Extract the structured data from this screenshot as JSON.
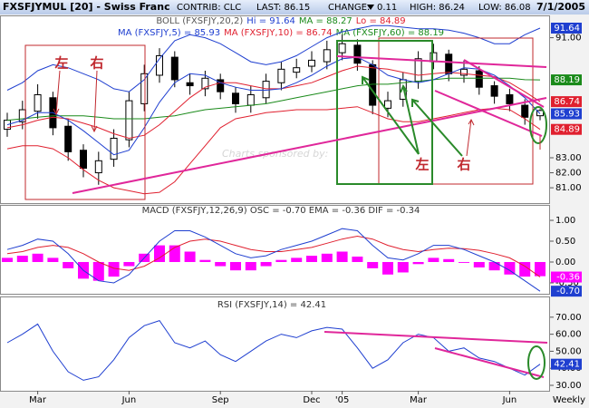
{
  "header": {
    "title": "FXSFJYMUL [20] - Swiss Franc",
    "contrib": "CONTRIB: CLC",
    "last": "LAST: 86.15",
    "change": "CHANGE:",
    "change_value": "0.11",
    "high": "HIGH: 86.24",
    "low": "LOW: 86.08",
    "date": "7/1/2005"
  },
  "chart_data": [
    {
      "type": "candlestick",
      "legend": [
        [
          {
            "text": "BOLL (FXSFJY,20,2)",
            "color": "#555555"
          },
          {
            "text": "Hi = 91.64",
            "color": "#1f3fd0"
          },
          {
            "text": "MA = 88.27",
            "color": "#1a8a1a"
          },
          {
            "text": "Lo = 84.89",
            "color": "#e0202f"
          }
        ],
        [
          {
            "text": "MA (FXSFJY,5) = 85.93",
            "color": "#1f3fd0"
          },
          {
            "text": "MA (FXSFJY,10) = 86.74",
            "color": "#e0202f"
          },
          {
            "text": "MA (FXSFJY,60) = 88.19",
            "color": "#1a8a1a"
          }
        ]
      ],
      "open": [
        84.9,
        85.4,
        86.1,
        87.0,
        85.1,
        83.5,
        82.0,
        82.9,
        84.2,
        86.6,
        88.5,
        89.7,
        88.0,
        87.6,
        88.2,
        87.3,
        86.5,
        87.0,
        88.0,
        88.7,
        89.1,
        89.4,
        90.0,
        90.5,
        89.2,
        86.3,
        86.9,
        88.1,
        89.4,
        89.9,
        88.5,
        88.8,
        87.8,
        87.2,
        86.5,
        85.8
      ],
      "high": [
        86.0,
        86.8,
        87.9,
        87.4,
        85.6,
        83.9,
        83.4,
        84.9,
        87.4,
        89.2,
        90.3,
        90.1,
        88.6,
        88.8,
        88.6,
        87.7,
        87.8,
        88.6,
        89.4,
        89.6,
        90.1,
        90.8,
        91.2,
        90.9,
        89.5,
        87.4,
        88.7,
        90.1,
        90.6,
        90.2,
        89.5,
        89.1,
        88.1,
        87.6,
        86.9,
        86.24
      ],
      "low": [
        84.4,
        84.9,
        85.6,
        84.5,
        82.8,
        81.7,
        81.2,
        82.4,
        83.7,
        86.1,
        88.0,
        87.7,
        87.2,
        87.1,
        86.9,
        86.0,
        86.0,
        86.6,
        87.5,
        88.3,
        88.7,
        88.9,
        89.5,
        88.8,
        85.9,
        85.7,
        86.4,
        87.6,
        88.9,
        88.1,
        88.0,
        87.2,
        86.6,
        86.1,
        85.2,
        85.5
      ],
      "close": [
        85.5,
        86.2,
        87.2,
        85.0,
        83.4,
        82.3,
        82.8,
        84.3,
        86.8,
        88.6,
        89.8,
        88.2,
        87.8,
        88.3,
        87.4,
        86.6,
        87.2,
        88.1,
        88.9,
        89.0,
        89.5,
        90.2,
        90.6,
        89.3,
        86.5,
        86.8,
        88.2,
        89.6,
        90.0,
        88.6,
        88.9,
        87.7,
        87.1,
        86.6,
        85.7,
        86.15
      ],
      "lines": [
        {
          "color": "#1f3fd0",
          "values": [
            87.5,
            88.0,
            88.8,
            89.2,
            89.0,
            88.6,
            88.2,
            87.6,
            87.4,
            88.2,
            89.6,
            90.8,
            91.2,
            91.0,
            90.6,
            90.0,
            89.4,
            89.2,
            89.4,
            89.8,
            90.4,
            91.0,
            91.4,
            91.6,
            91.8,
            91.8,
            91.7,
            91.6,
            91.6,
            91.5,
            91.3,
            91.0,
            90.6,
            90.6,
            91.2,
            91.64
          ]
        },
        {
          "color": "#1a8a1a",
          "values": [
            85.5,
            85.6,
            85.7,
            85.8,
            85.8,
            85.8,
            85.7,
            85.6,
            85.6,
            85.6,
            85.7,
            85.8,
            86.0,
            86.2,
            86.3,
            86.4,
            86.5,
            86.6,
            86.8,
            87.0,
            87.2,
            87.4,
            87.6,
            87.8,
            87.9,
            87.9,
            88.0,
            88.1,
            88.2,
            88.3,
            88.3,
            88.3,
            88.3,
            88.3,
            88.2,
            88.19
          ]
        },
        {
          "color": "#e0202f",
          "values": [
            85.0,
            85.2,
            85.5,
            85.7,
            85.6,
            85.3,
            85.0,
            84.6,
            84.3,
            84.5,
            85.2,
            86.1,
            87.0,
            87.7,
            88.0,
            88.0,
            87.8,
            87.6,
            87.6,
            87.8,
            88.0,
            88.4,
            88.8,
            89.1,
            89.0,
            88.9,
            88.7,
            88.5,
            88.6,
            88.7,
            88.6,
            88.5,
            88.4,
            88.0,
            87.4,
            86.74
          ]
        },
        {
          "color": "#1f3fd0",
          "values": [
            85.2,
            85.5,
            86.0,
            86.0,
            85.5,
            84.8,
            84.0,
            83.2,
            83.5,
            85.0,
            86.7,
            88.0,
            88.6,
            88.5,
            88.0,
            87.7,
            87.5,
            87.5,
            87.6,
            88.0,
            88.5,
            89.1,
            89.6,
            89.7,
            89.2,
            88.5,
            88.2,
            88.0,
            88.2,
            88.6,
            89.0,
            88.9,
            88.5,
            87.8,
            87.0,
            85.93
          ]
        },
        {
          "color": "#e0202f",
          "values": [
            83.6,
            83.8,
            83.8,
            83.6,
            83.0,
            82.2,
            81.5,
            81.0,
            80.8,
            80.6,
            80.7,
            81.4,
            82.6,
            83.8,
            85.0,
            85.6,
            85.8,
            86.0,
            86.1,
            86.2,
            86.2,
            86.2,
            86.3,
            86.4,
            86.0,
            85.6,
            85.4,
            85.4,
            85.6,
            85.8,
            86.0,
            86.2,
            86.3,
            86.2,
            85.6,
            84.89
          ]
        }
      ],
      "ylim": [
        80.1,
        91.7
      ],
      "yticks": [
        {
          "value": 81,
          "label": "81.00"
        },
        {
          "value": 82,
          "label": "82.00"
        },
        {
          "value": 83,
          "label": "83.00"
        },
        {
          "value": 91,
          "label": "91.00"
        }
      ],
      "annotations": [
        "左",
        "右",
        "左",
        "右"
      ],
      "watermark": "Charts sponsored by:"
    },
    {
      "type": "macd",
      "title": "MACD (FXSFJY,12,26,9) OSC = -0.70 EMA = -0.36 DIF = -0.34",
      "bars": {
        "color": "#ff00ff",
        "values": [
          0.1,
          0.15,
          0.2,
          0.1,
          -0.15,
          -0.4,
          -0.45,
          -0.35,
          -0.1,
          0.2,
          0.4,
          0.4,
          0.25,
          0.05,
          -0.1,
          -0.2,
          -0.2,
          -0.1,
          0.05,
          0.1,
          0.15,
          0.2,
          0.25,
          0.13,
          -0.15,
          -0.3,
          -0.25,
          -0.05,
          0.1,
          0.07,
          -0.02,
          -0.13,
          -0.2,
          -0.3,
          -0.35,
          -0.34
        ]
      },
      "lines": [
        {
          "color": "#e0202f",
          "box_color": "#ff00ff",
          "values": [
            0.2,
            0.25,
            0.35,
            0.4,
            0.35,
            0.2,
            0.0,
            -0.15,
            -0.2,
            -0.1,
            0.1,
            0.35,
            0.5,
            0.55,
            0.5,
            0.4,
            0.3,
            0.25,
            0.25,
            0.3,
            0.35,
            0.45,
            0.55,
            0.62,
            0.55,
            0.4,
            0.3,
            0.25,
            0.3,
            0.33,
            0.32,
            0.28,
            0.2,
            0.1,
            -0.1,
            -0.36
          ]
        },
        {
          "color": "#1f3fd0",
          "box_color": "#1f3fd0",
          "values": [
            0.3,
            0.4,
            0.55,
            0.5,
            0.2,
            -0.2,
            -0.45,
            -0.5,
            -0.3,
            0.1,
            0.5,
            0.75,
            0.75,
            0.6,
            0.4,
            0.2,
            0.1,
            0.15,
            0.3,
            0.4,
            0.5,
            0.65,
            0.8,
            0.75,
            0.4,
            0.1,
            0.05,
            0.2,
            0.4,
            0.4,
            0.3,
            0.15,
            0.0,
            -0.2,
            -0.45,
            -0.7
          ],
          "end_label": "-0.70"
        }
      ],
      "ylim": [
        -0.74,
        1.24
      ],
      "yticks": [
        {
          "value": 1,
          "label": "1.00"
        },
        {
          "value": 0.5,
          "label": "0.50"
        },
        {
          "value": 0,
          "label": "0.00"
        },
        {
          "value": -0.5,
          "label": "-0.50"
        }
      ]
    },
    {
      "type": "line",
      "title": "RSI (FXSFJY,14) = 42.41",
      "color": "#1f3fd0",
      "values": [
        55,
        60,
        66,
        50,
        38,
        33,
        35,
        45,
        58,
        65,
        68,
        55,
        52,
        56,
        48,
        44,
        50,
        56,
        60,
        58,
        62,
        64,
        63,
        52,
        40,
        45,
        55,
        60,
        58,
        50,
        52,
        46,
        44,
        40,
        36,
        42.41
      ],
      "categories": [
        null,
        null,
        "Mar",
        null,
        null,
        null,
        null,
        null,
        "Jun",
        null,
        null,
        null,
        null,
        null,
        "Sep",
        null,
        null,
        null,
        null,
        null,
        "Dec",
        null,
        "'05",
        null,
        null,
        null,
        null,
        "Mar",
        null,
        null,
        null,
        null,
        null,
        "Jun",
        null,
        null
      ],
      "xlabel": "Weekly",
      "ylim": [
        26.8,
        77.9
      ],
      "yticks": [
        {
          "value": 70,
          "label": "70.00"
        },
        {
          "value": 60,
          "label": "60.00"
        },
        {
          "value": 50,
          "label": "50.00"
        },
        {
          "value": 40,
          "label": "40.00"
        },
        {
          "value": 30,
          "label": "30.00"
        }
      ]
    }
  ]
}
